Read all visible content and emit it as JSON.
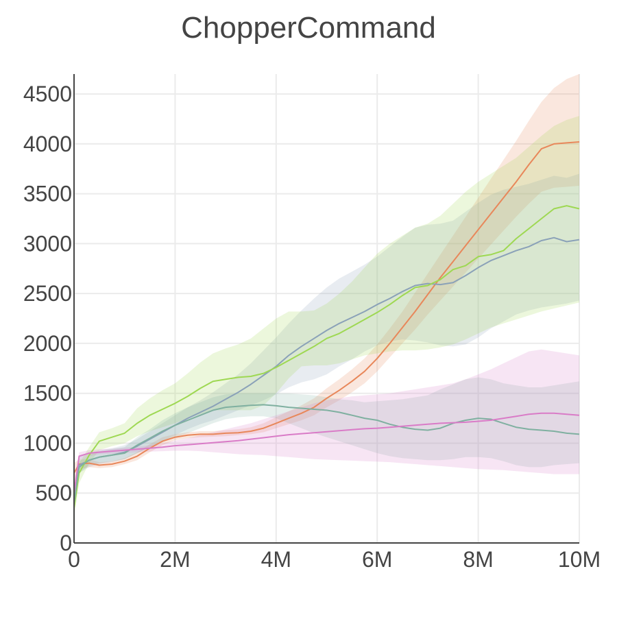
{
  "chart_data": {
    "type": "line",
    "title": "ChopperCommand",
    "xlabel": "",
    "ylabel": "",
    "xlim": [
      0,
      10000000
    ],
    "ylim": [
      0,
      4700
    ],
    "x_ticks": [
      {
        "value": 0,
        "label": "0"
      },
      {
        "value": 2000000,
        "label": "2M"
      },
      {
        "value": 4000000,
        "label": "4M"
      },
      {
        "value": 6000000,
        "label": "6M"
      },
      {
        "value": 8000000,
        "label": "8M"
      },
      {
        "value": 10000000,
        "label": "10M"
      }
    ],
    "y_ticks": [
      {
        "value": 0,
        "label": "0"
      },
      {
        "value": 500,
        "label": "500"
      },
      {
        "value": 1000,
        "label": "1000"
      },
      {
        "value": 1500,
        "label": "1500"
      },
      {
        "value": 2000,
        "label": "2000"
      },
      {
        "value": 2500,
        "label": "2500"
      },
      {
        "value": 3000,
        "label": "3000"
      },
      {
        "value": 3500,
        "label": "3500"
      },
      {
        "value": 4000,
        "label": "4000"
      },
      {
        "value": 4500,
        "label": "4500"
      }
    ],
    "grid": true,
    "legend": "none",
    "x": [
      0,
      0.1,
      0.3,
      0.5,
      0.75,
      1,
      1.25,
      1.5,
      1.75,
      2,
      2.25,
      2.5,
      2.75,
      3,
      3.25,
      3.5,
      3.75,
      4,
      4.25,
      4.5,
      4.75,
      5,
      5.25,
      5.5,
      5.75,
      6,
      6.25,
      6.5,
      6.75,
      7,
      7.25,
      7.5,
      7.75,
      8,
      8.25,
      8.5,
      8.75,
      9,
      9.25,
      9.5,
      9.75,
      10
    ],
    "x_scale": 1000000,
    "series": [
      {
        "color": "#e8875a",
        "values": [
          700,
          790,
          800,
          780,
          790,
          820,
          870,
          950,
          1020,
          1060,
          1080,
          1090,
          1090,
          1100,
          1105,
          1120,
          1150,
          1200,
          1250,
          1300,
          1360,
          1450,
          1530,
          1620,
          1720,
          1850,
          2000,
          2160,
          2320,
          2490,
          2660,
          2820,
          2980,
          3140,
          3300,
          3460,
          3620,
          3790,
          3950,
          4000,
          4010,
          4020
        ],
        "lower": [
          600,
          740,
          760,
          750,
          760,
          790,
          830,
          910,
          980,
          1030,
          1050,
          1060,
          1065,
          1070,
          1080,
          1090,
          1110,
          1150,
          1190,
          1230,
          1280,
          1360,
          1430,
          1510,
          1600,
          1720,
          1860,
          2000,
          2140,
          2290,
          2430,
          2570,
          2710,
          2850,
          2990,
          3130,
          3270,
          3400,
          3520,
          3560,
          3570,
          3580
        ],
        "upper": [
          800,
          840,
          840,
          810,
          820,
          850,
          910,
          990,
          1060,
          1090,
          1110,
          1120,
          1120,
          1130,
          1140,
          1160,
          1200,
          1260,
          1320,
          1380,
          1450,
          1550,
          1640,
          1740,
          1850,
          1990,
          2150,
          2320,
          2510,
          2700,
          2890,
          3080,
          3270,
          3460,
          3650,
          3840,
          4030,
          4230,
          4420,
          4560,
          4650,
          4700
        ]
      },
      {
        "color": "#8aa1b8",
        "values": [
          380,
          780,
          830,
          860,
          880,
          910,
          970,
          1040,
          1110,
          1180,
          1250,
          1310,
          1370,
          1440,
          1510,
          1590,
          1680,
          1770,
          1880,
          1970,
          2050,
          2130,
          2200,
          2260,
          2320,
          2390,
          2450,
          2520,
          2580,
          2600,
          2590,
          2610,
          2680,
          2760,
          2830,
          2880,
          2930,
          2970,
          3030,
          3060,
          3020,
          3040
        ],
        "lower": [
          300,
          700,
          760,
          790,
          810,
          840,
          900,
          960,
          1020,
          1080,
          1140,
          1190,
          1230,
          1280,
          1330,
          1380,
          1430,
          1490,
          1560,
          1610,
          1640,
          1690,
          1770,
          1840,
          1920,
          1980,
          2020,
          2040,
          2030,
          2010,
          1980,
          1970,
          1990,
          2060,
          2150,
          2220,
          2290,
          2330,
          2360,
          2380,
          2400,
          2430
        ],
        "upper": [
          460,
          860,
          900,
          930,
          950,
          980,
          1040,
          1120,
          1200,
          1280,
          1360,
          1430,
          1510,
          1600,
          1690,
          1800,
          1930,
          2060,
          2200,
          2330,
          2450,
          2560,
          2650,
          2720,
          2790,
          2870,
          2970,
          3070,
          3160,
          3190,
          3200,
          3230,
          3320,
          3410,
          3490,
          3540,
          3570,
          3600,
          3640,
          3680,
          3660,
          3700
        ]
      },
      {
        "color": "#9ed852",
        "values": [
          350,
          700,
          880,
          1020,
          1060,
          1100,
          1200,
          1280,
          1340,
          1400,
          1470,
          1550,
          1620,
          1640,
          1660,
          1670,
          1700,
          1760,
          1830,
          1900,
          1970,
          2050,
          2100,
          2170,
          2240,
          2310,
          2390,
          2480,
          2560,
          2580,
          2640,
          2740,
          2780,
          2870,
          2890,
          2930,
          3050,
          3150,
          3250,
          3350,
          3380,
          3350
        ],
        "lower": [
          250,
          600,
          800,
          930,
          970,
          1000,
          1070,
          1120,
          1160,
          1200,
          1250,
          1290,
          1330,
          1330,
          1330,
          1330,
          1380,
          1500,
          1650,
          1770,
          1780,
          1780,
          1800,
          1840,
          1880,
          1900,
          1920,
          1930,
          1930,
          1940,
          1960,
          1990,
          2040,
          2100,
          2160,
          2200,
          2240,
          2280,
          2320,
          2350,
          2380,
          2410
        ],
        "upper": [
          450,
          800,
          960,
          1110,
          1150,
          1200,
          1350,
          1450,
          1530,
          1600,
          1700,
          1810,
          1900,
          1950,
          1990,
          2050,
          2150,
          2250,
          2320,
          2320,
          2330,
          2400,
          2500,
          2620,
          2760,
          2900,
          3000,
          3080,
          3160,
          3200,
          3280,
          3400,
          3520,
          3620,
          3700,
          3780,
          3860,
          3970,
          4080,
          4180,
          4240,
          4280
        ]
      },
      {
        "color": "#7fb0a0",
        "values": [
          400,
          760,
          830,
          860,
          880,
          900,
          980,
          1050,
          1120,
          1180,
          1230,
          1280,
          1330,
          1360,
          1370,
          1380,
          1385,
          1375,
          1360,
          1350,
          1340,
          1330,
          1310,
          1280,
          1250,
          1230,
          1190,
          1160,
          1140,
          1130,
          1150,
          1200,
          1230,
          1250,
          1240,
          1200,
          1160,
          1140,
          1130,
          1120,
          1100,
          1090
        ],
        "lower": [
          320,
          700,
          780,
          800,
          820,
          840,
          900,
          960,
          1010,
          1060,
          1100,
          1150,
          1200,
          1240,
          1260,
          1270,
          1270,
          1250,
          1200,
          1150,
          1100,
          1060,
          1020,
          980,
          940,
          900,
          870,
          850,
          840,
          830,
          830,
          840,
          860,
          860,
          850,
          820,
          780,
          760,
          760,
          780,
          790,
          800
        ],
        "upper": [
          480,
          820,
          880,
          920,
          940,
          960,
          1060,
          1140,
          1230,
          1300,
          1360,
          1410,
          1460,
          1490,
          1500,
          1500,
          1500,
          1500,
          1500,
          1490,
          1480,
          1460,
          1440,
          1430,
          1410,
          1420,
          1430,
          1440,
          1460,
          1480,
          1540,
          1590,
          1640,
          1660,
          1640,
          1600,
          1580,
          1560,
          1560,
          1580,
          1600,
          1620
        ]
      },
      {
        "color": "#d97bc7",
        "values": [
          500,
          870,
          900,
          910,
          920,
          930,
          940,
          950,
          960,
          975,
          985,
          995,
          1005,
          1015,
          1025,
          1040,
          1055,
          1070,
          1085,
          1095,
          1105,
          1115,
          1125,
          1135,
          1145,
          1150,
          1160,
          1170,
          1180,
          1190,
          1200,
          1205,
          1210,
          1220,
          1230,
          1250,
          1270,
          1290,
          1300,
          1300,
          1290,
          1280
        ],
        "lower": [
          420,
          830,
          870,
          890,
          895,
          900,
          910,
          915,
          920,
          925,
          925,
          920,
          910,
          900,
          890,
          885,
          880,
          870,
          860,
          850,
          840,
          835,
          830,
          825,
          820,
          815,
          810,
          800,
          790,
          780,
          770,
          760,
          750,
          740,
          735,
          730,
          720,
          710,
          700,
          690,
          690,
          690
        ],
        "upper": [
          580,
          910,
          930,
          940,
          945,
          955,
          965,
          980,
          1000,
          1025,
          1050,
          1080,
          1110,
          1140,
          1170,
          1200,
          1240,
          1280,
          1320,
          1360,
          1400,
          1430,
          1450,
          1470,
          1480,
          1490,
          1500,
          1520,
          1540,
          1560,
          1580,
          1600,
          1640,
          1690,
          1740,
          1800,
          1860,
          1920,
          1940,
          1920,
          1900,
          1880
        ]
      }
    ]
  }
}
